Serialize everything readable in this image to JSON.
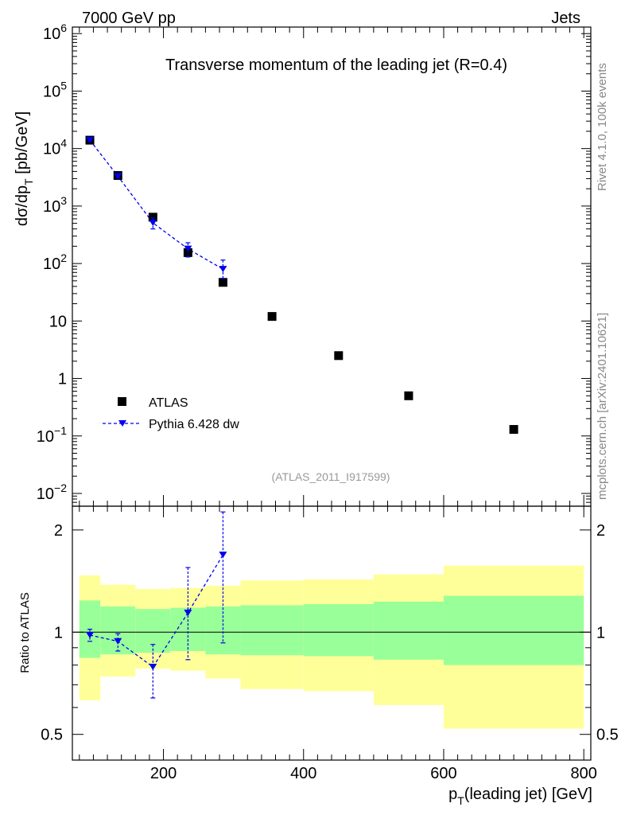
{
  "header": {
    "left": "7000 GeV pp",
    "right": "Jets"
  },
  "side_text": {
    "rivet": "Rivet 4.1.0,  100k events",
    "mcplots": "mcplots.cern.ch [arXiv:2401.10621]"
  },
  "colors": {
    "mc": "#0000ee",
    "data": "#000000",
    "band_inner": "#99ff99",
    "band_outer": "#ffff99"
  },
  "chart_data": [
    {
      "type": "scatter",
      "panel": "main",
      "title": "Transverse momentum of the leading jet (R=0.4)",
      "analysis": "(ATLAS_2011_I917599)",
      "ylabel_parts": [
        "dσ/dp",
        "T",
        " [pb/GeV]"
      ],
      "yscale": "log",
      "ylim": [
        0.006,
        1300000
      ],
      "xlim": [
        70,
        810
      ],
      "ytick_values": [
        0.01,
        0.1,
        1,
        10,
        100,
        1000,
        10000,
        100000,
        1000000
      ],
      "ytick_labels": [
        {
          "base": "10",
          "exp": "−2"
        },
        {
          "base": "10",
          "exp": "−1"
        },
        {
          "base": "1",
          "exp": ""
        },
        {
          "base": "10",
          "exp": ""
        },
        {
          "base": "10",
          "exp": "2"
        },
        {
          "base": "10",
          "exp": "3"
        },
        {
          "base": "10",
          "exp": "4"
        },
        {
          "base": "10",
          "exp": "5"
        },
        {
          "base": "10",
          "exp": "6"
        }
      ],
      "legend": {
        "position": "lower-left",
        "entries": [
          "ATLAS",
          "Pythia 6.428 dw"
        ]
      },
      "series": [
        {
          "name": "ATLAS",
          "x": [
            95,
            135,
            185,
            235,
            285,
            355,
            450,
            550,
            700
          ],
          "y": [
            14000,
            3400,
            640,
            155,
            47,
            12,
            2.5,
            0.5,
            0.13
          ]
        },
        {
          "name": "Pythia 6.428 dw",
          "x": [
            95,
            135,
            185,
            235,
            285
          ],
          "y": [
            14000,
            3300,
            510,
            180,
            80
          ],
          "y_low": [
            13200,
            3100,
            400,
            130,
            55
          ],
          "y_high": [
            14800,
            3500,
            620,
            230,
            115
          ]
        }
      ]
    },
    {
      "type": "scatter",
      "panel": "ratio",
      "ylabel": "Ratio to ATLAS",
      "xlabel_parts": [
        "p",
        "T",
        "(leading jet) [GeV]"
      ],
      "yscale": "log",
      "ylim": [
        0.42,
        2.35
      ],
      "xlim": [
        70,
        810
      ],
      "xtick_values": [
        200,
        400,
        600,
        800
      ],
      "xtick_labels": [
        "200",
        "400",
        "600",
        "800"
      ],
      "ytick_values": [
        0.5,
        1,
        2
      ],
      "ytick_labels": [
        "0.5",
        "1",
        "2"
      ],
      "bands": [
        {
          "x0": 80,
          "x1": 110,
          "inner_lo": 0.84,
          "inner_hi": 1.24,
          "outer_lo": 0.63,
          "outer_hi": 1.47
        },
        {
          "x0": 110,
          "x1": 160,
          "inner_lo": 0.86,
          "inner_hi": 1.19,
          "outer_lo": 0.74,
          "outer_hi": 1.38
        },
        {
          "x0": 160,
          "x1": 210,
          "inner_lo": 0.87,
          "inner_hi": 1.17,
          "outer_lo": 0.78,
          "outer_hi": 1.34
        },
        {
          "x0": 210,
          "x1": 260,
          "inner_lo": 0.88,
          "inner_hi": 1.18,
          "outer_lo": 0.77,
          "outer_hi": 1.35
        },
        {
          "x0": 260,
          "x1": 310,
          "inner_lo": 0.86,
          "inner_hi": 1.19,
          "outer_lo": 0.73,
          "outer_hi": 1.37
        },
        {
          "x0": 310,
          "x1": 400,
          "inner_lo": 0.855,
          "inner_hi": 1.2,
          "outer_lo": 0.68,
          "outer_hi": 1.42
        },
        {
          "x0": 400,
          "x1": 500,
          "inner_lo": 0.85,
          "inner_hi": 1.21,
          "outer_lo": 0.67,
          "outer_hi": 1.43
        },
        {
          "x0": 500,
          "x1": 600,
          "inner_lo": 0.83,
          "inner_hi": 1.23,
          "outer_lo": 0.61,
          "outer_hi": 1.48
        },
        {
          "x0": 600,
          "x1": 800,
          "inner_lo": 0.8,
          "inner_hi": 1.28,
          "outer_lo": 0.52,
          "outer_hi": 1.57
        }
      ],
      "series": [
        {
          "name": "Pythia 6.428 dw",
          "x": [
            95,
            135,
            185,
            235,
            285
          ],
          "y": [
            0.98,
            0.94,
            0.79,
            1.14,
            1.69
          ],
          "y_low": [
            0.94,
            0.88,
            0.64,
            0.83,
            0.93
          ],
          "y_high": [
            1.02,
            0.99,
            0.92,
            1.55,
            2.26
          ]
        }
      ]
    }
  ]
}
